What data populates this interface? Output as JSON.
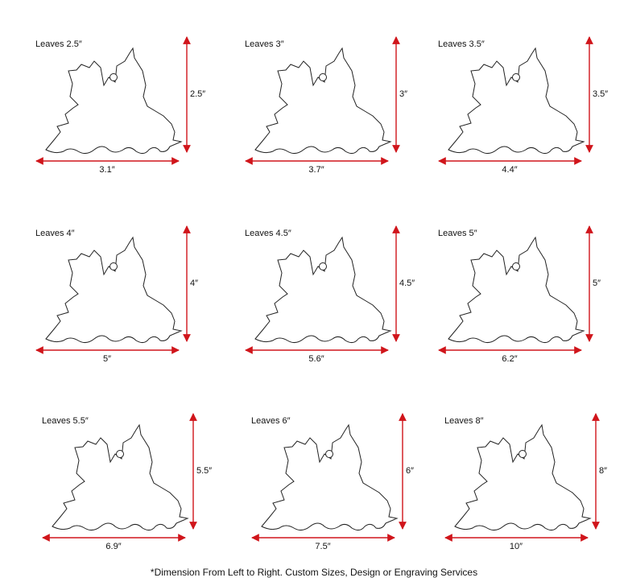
{
  "items": [
    {
      "label": "Leaves 2.5″",
      "height": "2.5″",
      "width": "3.1″"
    },
    {
      "label": "Leaves 3″",
      "height": "3″",
      "width": "3.7″"
    },
    {
      "label": "Leaves 3.5″",
      "height": "3.5″",
      "width": "4.4″"
    },
    {
      "label": "Leaves 4″",
      "height": "4″",
      "width": "5″"
    },
    {
      "label": "Leaves 4.5″",
      "height": "4.5″",
      "width": "5.6″"
    },
    {
      "label": "Leaves 5″",
      "height": "5″",
      "width": "6.2″"
    },
    {
      "label": "Leaves 5.5″",
      "height": "5.5″",
      "width": "6.9″"
    },
    {
      "label": "Leaves 6″",
      "height": "6″",
      "width": "7.5″"
    },
    {
      "label": "Leaves 8″",
      "height": "8″",
      "width": "10″"
    }
  ],
  "footnote": "*Dimension From Left to Right. Custom Sizes, Design or Engraving Services"
}
